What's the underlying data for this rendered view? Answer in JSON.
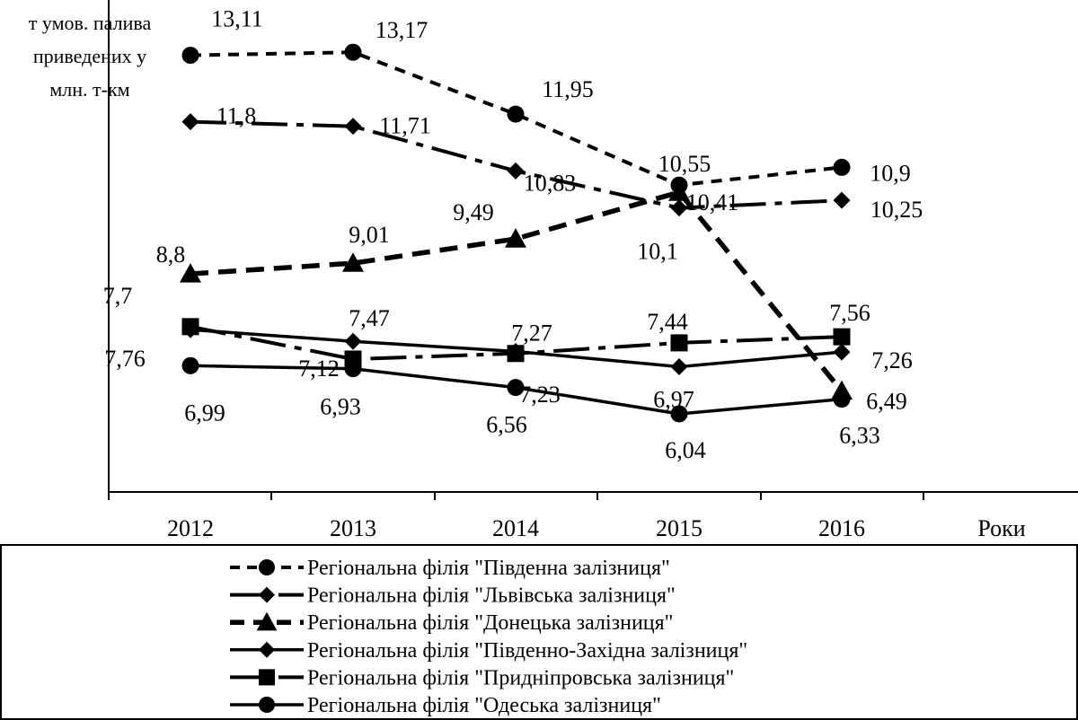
{
  "chart_data": {
    "type": "line",
    "title": "",
    "ylabel_lines": [
      "т умов. палива",
      "приведених у",
      "млн. т-км"
    ],
    "xlabel": "Роки",
    "categories": [
      "2012",
      "2013",
      "2014",
      "2015",
      "2016"
    ],
    "ylim": [
      4.5,
      14.2
    ],
    "grid": false,
    "legend_position": "bottom",
    "series": [
      {
        "name": "Регіональна філія \"Південна залізниця\"",
        "values": [
          13.11,
          13.17,
          11.95,
          10.55,
          10.9
        ],
        "labels": [
          "13,11",
          "13,17",
          "11,95",
          "10,55",
          "10,9"
        ],
        "marker": "circle",
        "dash": "short-dash"
      },
      {
        "name": "Регіональна філія \"Львівська залізниця\"",
        "values": [
          11.8,
          11.71,
          10.83,
          10.1,
          10.25
        ],
        "labels": [
          "11,8",
          "11,71",
          "10,83",
          "10,1",
          "10,25"
        ],
        "marker": "diamond",
        "dash": "long-dash-dot"
      },
      {
        "name": "Регіональна філія \"Донецька залізниця\"",
        "values": [
          8.8,
          9.01,
          9.49,
          10.41,
          6.49
        ],
        "labels": [
          "8,8",
          "9,01",
          "9,49",
          "10,41",
          "6,49"
        ],
        "marker": "triangle",
        "dash": "thick-dash"
      },
      {
        "name": "Регіональна філія \"Південно-Західна залізниця\"",
        "values": [
          7.7,
          7.47,
          7.27,
          6.97,
          7.26
        ],
        "labels": [
          "7,7",
          "7,47",
          "7,27",
          "6,97",
          "7,26"
        ],
        "marker": "diamond",
        "dash": "solid"
      },
      {
        "name": "Регіональна філія \"Придніпровська залізниця\"",
        "values": [
          7.76,
          7.12,
          7.23,
          7.44,
          7.56
        ],
        "labels": [
          "7,76",
          "7,12",
          "7,23",
          "7,44",
          "7,56"
        ],
        "marker": "square",
        "dash": "long-dash-dot"
      },
      {
        "name": "Регіональна філія \"Одеська залізниця\"",
        "values": [
          6.99,
          6.93,
          6.56,
          6.04,
          6.33
        ],
        "labels": [
          "6,99",
          "6,93",
          "6,56",
          "6,04",
          "6,33"
        ],
        "marker": "circle",
        "dash": "solid"
      }
    ]
  }
}
